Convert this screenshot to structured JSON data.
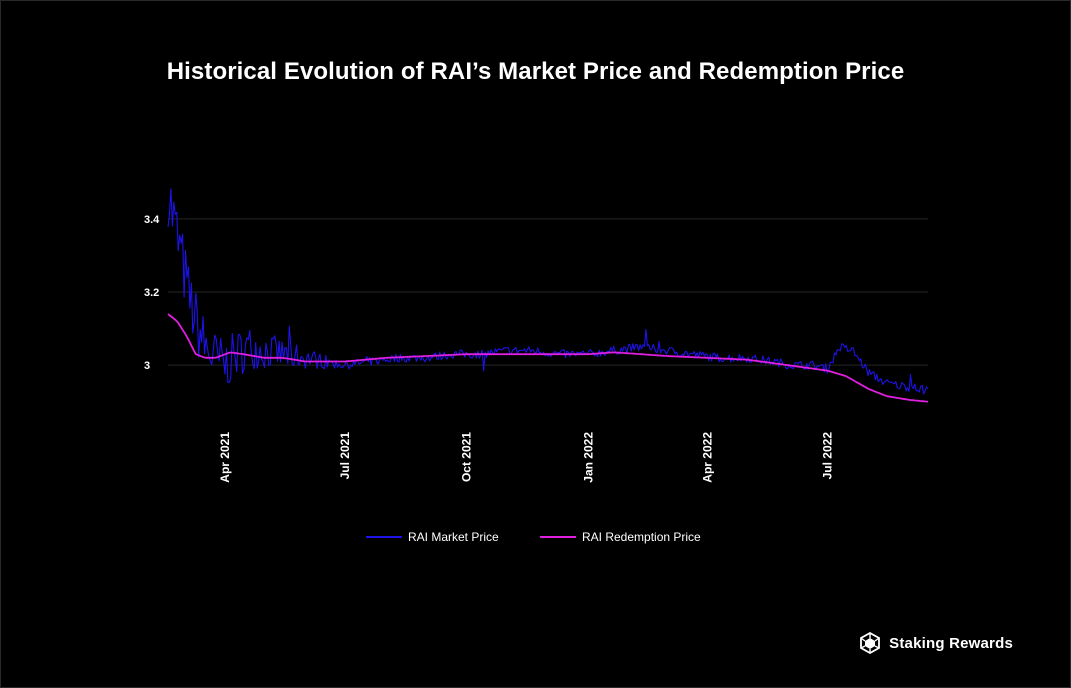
{
  "chart_data": {
    "type": "line",
    "title": "Historical Evolution of RAI’s Market Price and Redemption Price",
    "xlabel": "",
    "ylabel": "",
    "ylim": [
      2.85,
      3.52
    ],
    "y_ticks": [
      3,
      3.2,
      3.4
    ],
    "y_tick_labels": [
      "3",
      "3.2",
      "3.4"
    ],
    "x_range": [
      "2021-02-17",
      "2022-09-15"
    ],
    "x_ticks": [
      "2021-04-01",
      "2021-07-01",
      "2021-10-01",
      "2022-01-01",
      "2022-04-01",
      "2022-07-01"
    ],
    "x_tick_labels": [
      "Apr 2021",
      "Jul 2021",
      "Oct 2021",
      "Jan 2022",
      "Apr 2022",
      "Jul 2022"
    ],
    "grid": true,
    "legend_position": "bottom-center",
    "series": [
      {
        "name": "RAI Market Price",
        "color": "#1e12e8",
        "x": [
          "2021-02-17",
          "2021-02-20",
          "2021-02-24",
          "2021-02-28",
          "2021-03-04",
          "2021-03-10",
          "2021-03-17",
          "2021-03-24",
          "2021-04-01",
          "2021-04-10",
          "2021-04-20",
          "2021-05-01",
          "2021-05-15",
          "2021-06-01",
          "2021-06-15",
          "2021-07-01",
          "2021-07-20",
          "2021-08-10",
          "2021-09-01",
          "2021-09-20",
          "2021-10-10",
          "2021-11-01",
          "2021-11-20",
          "2021-12-10",
          "2022-01-01",
          "2022-01-20",
          "2022-02-10",
          "2022-03-01",
          "2022-03-20",
          "2022-04-10",
          "2022-05-01",
          "2022-05-20",
          "2022-06-05",
          "2022-06-20",
          "2022-07-01",
          "2022-07-10",
          "2022-07-20",
          "2022-08-01",
          "2022-08-15",
          "2022-09-01",
          "2022-09-15"
        ],
        "values": [
          3.48,
          3.42,
          3.35,
          3.28,
          3.2,
          3.12,
          3.05,
          3.02,
          3.0,
          3.03,
          3.05,
          3.04,
          3.03,
          3.02,
          3.01,
          3.0,
          3.01,
          3.02,
          3.02,
          3.03,
          3.03,
          3.04,
          3.04,
          3.03,
          3.03,
          3.04,
          3.05,
          3.04,
          3.03,
          3.02,
          3.02,
          3.01,
          3.0,
          3.0,
          2.99,
          3.05,
          3.04,
          2.98,
          2.95,
          2.94,
          2.93
        ]
      },
      {
        "name": "RAI Redemption Price",
        "color": "#e01fe0",
        "x": [
          "2021-02-17",
          "2021-02-24",
          "2021-03-03",
          "2021-03-10",
          "2021-03-17",
          "2021-03-25",
          "2021-04-05",
          "2021-04-15",
          "2021-05-01",
          "2021-05-15",
          "2021-06-01",
          "2021-06-15",
          "2021-07-01",
          "2021-08-01",
          "2021-09-01",
          "2021-10-01",
          "2021-11-01",
          "2021-12-01",
          "2022-01-01",
          "2022-01-20",
          "2022-02-10",
          "2022-03-01",
          "2022-04-01",
          "2022-05-01",
          "2022-06-01",
          "2022-07-01",
          "2022-07-15",
          "2022-08-01",
          "2022-08-15",
          "2022-09-01",
          "2022-09-15"
        ],
        "values": [
          3.14,
          3.12,
          3.08,
          3.03,
          3.02,
          3.02,
          3.035,
          3.03,
          3.02,
          3.02,
          3.01,
          3.01,
          3.01,
          3.02,
          3.025,
          3.03,
          3.03,
          3.03,
          3.03,
          3.035,
          3.03,
          3.025,
          3.02,
          3.015,
          3.0,
          2.985,
          2.97,
          2.935,
          2.915,
          2.905,
          2.9
        ]
      }
    ]
  },
  "legend": {
    "market_label": "RAI Market Price",
    "redemption_label": "RAI Redemption Price"
  },
  "branding": {
    "name": "Staking Rewards",
    "logo_icon": "polyhedron-logo-icon"
  }
}
